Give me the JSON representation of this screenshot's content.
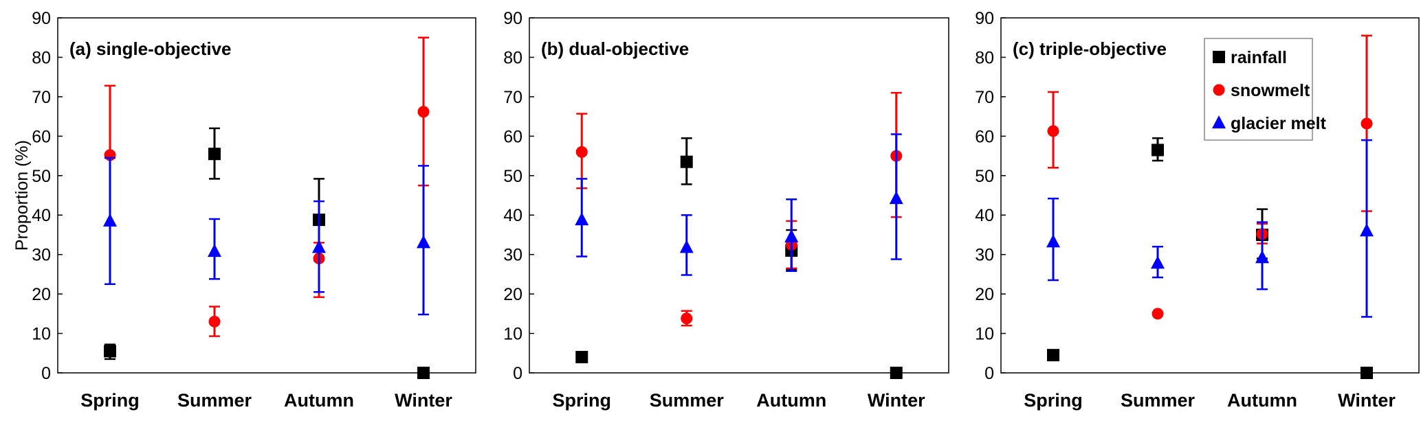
{
  "chart_data": [
    {
      "type": "scatter",
      "title": "(a) single-objective",
      "ylabel": "Proportion (%)",
      "ylim": [
        0,
        90
      ],
      "yticks": [
        0,
        10,
        20,
        30,
        40,
        50,
        60,
        70,
        80,
        90
      ],
      "categories": [
        "Spring",
        "Summer",
        "Autumn",
        "Winter"
      ],
      "series": [
        {
          "name": "rainfall",
          "marker": "square",
          "color": "#000000",
          "values": [
            5.5,
            55.5,
            38.8,
            0
          ],
          "low": [
            3.5,
            49.2,
            28.5,
            0
          ],
          "high": [
            7.2,
            62,
            49.2,
            0
          ]
        },
        {
          "name": "snowmelt",
          "marker": "circle",
          "color": "#ff0000",
          "values": [
            55.2,
            13,
            29,
            66.2
          ],
          "low": [
            55.2,
            9.3,
            19.2,
            47.5
          ],
          "high": [
            72.8,
            16.8,
            33,
            85
          ]
        },
        {
          "name": "glacier melt",
          "marker": "triangle",
          "color": "#0000ff",
          "values": [
            38.5,
            30.8,
            31.8,
            33
          ],
          "low": [
            22.5,
            23.8,
            20.5,
            14.8
          ],
          "high": [
            54.5,
            39,
            43.5,
            52.5
          ]
        }
      ]
    },
    {
      "type": "scatter",
      "title": "(b) dual-objective",
      "ylim": [
        0,
        90
      ],
      "yticks": [
        0,
        10,
        20,
        30,
        40,
        50,
        60,
        70,
        80,
        90
      ],
      "categories": [
        "Spring",
        "Summer",
        "Autumn",
        "Winter"
      ],
      "series": [
        {
          "name": "rainfall",
          "marker": "square",
          "color": "#000000",
          "values": [
            4,
            53.5,
            31,
            0
          ],
          "low": [
            4,
            47.8,
            26.2,
            0
          ],
          "high": [
            4,
            59.5,
            36.2,
            0
          ]
        },
        {
          "name": "snowmelt",
          "marker": "circle",
          "color": "#ff0000",
          "values": [
            56,
            13.8,
            32.5,
            55
          ],
          "low": [
            46.8,
            12,
            26.5,
            39.5
          ],
          "high": [
            65.7,
            15.7,
            38.5,
            71
          ]
        },
        {
          "name": "glacier melt",
          "marker": "triangle",
          "color": "#0000ff",
          "values": [
            38.8,
            31.8,
            34.5,
            44.2
          ],
          "low": [
            29.5,
            24.8,
            25.8,
            28.8
          ],
          "high": [
            49.2,
            40,
            44,
            60.5
          ]
        }
      ]
    },
    {
      "type": "scatter",
      "title": "(c) triple-objective",
      "ylim": [
        0,
        90
      ],
      "yticks": [
        0,
        10,
        20,
        30,
        40,
        50,
        60,
        70,
        80,
        90
      ],
      "categories": [
        "Spring",
        "Summer",
        "Autumn",
        "Winter"
      ],
      "legend": {
        "placement": "top-right",
        "entries": [
          "rainfall",
          "snowmelt",
          "glacier melt"
        ]
      },
      "series": [
        {
          "name": "rainfall",
          "marker": "square",
          "color": "#000000",
          "values": [
            4.5,
            56.5,
            35,
            0
          ],
          "low": [
            4.5,
            53.8,
            29,
            0
          ],
          "high": [
            4.5,
            59.5,
            41.5,
            0
          ]
        },
        {
          "name": "snowmelt",
          "marker": "circle",
          "color": "#ff0000",
          "values": [
            61.3,
            15,
            35.2,
            63.2
          ],
          "low": [
            52,
            15,
            32.8,
            41
          ],
          "high": [
            71.2,
            15,
            37.8,
            85.5
          ]
        },
        {
          "name": "glacier melt",
          "marker": "triangle",
          "color": "#0000ff",
          "values": [
            33.2,
            27.8,
            29.2,
            36
          ],
          "low": [
            23.5,
            24.2,
            21.2,
            14.2
          ],
          "high": [
            44.2,
            32,
            38.2,
            59
          ]
        }
      ]
    }
  ]
}
